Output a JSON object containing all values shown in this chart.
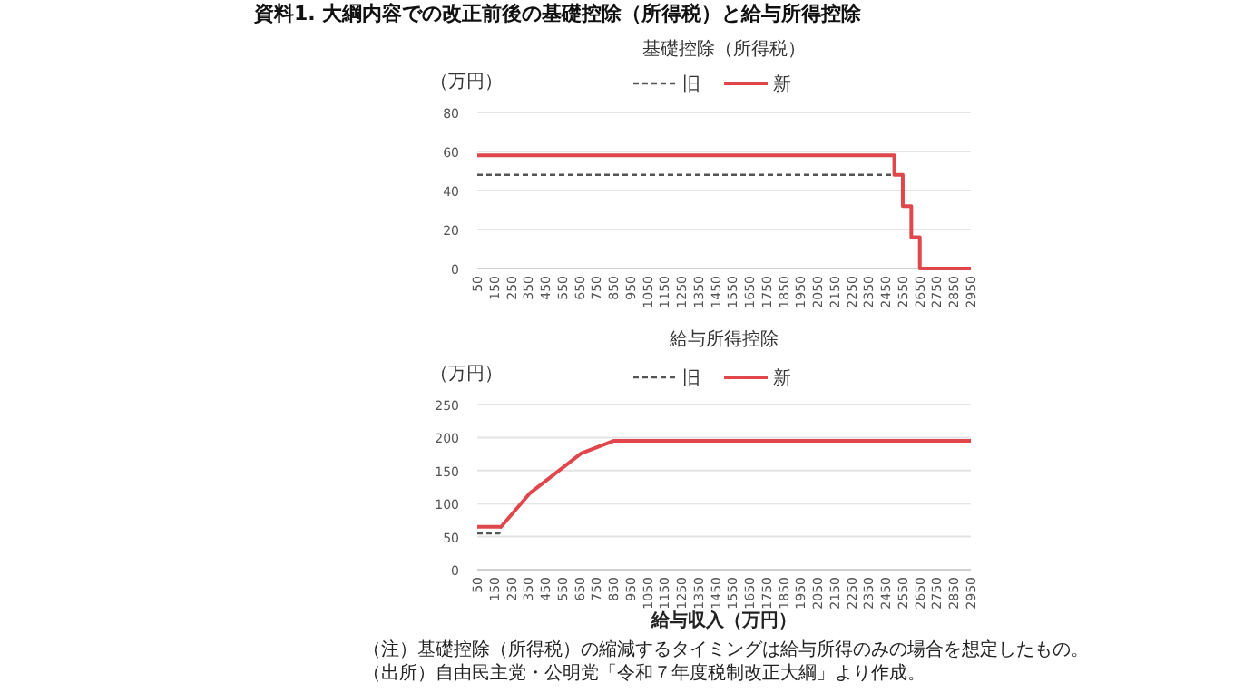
{
  "chart_data": [
    {
      "type": "step",
      "title": "資料1.  大綱内容での改正前後の基礎控除（所得税）と給与所得控除",
      "subtitle": "基礎控除（所得税）",
      "ylabel": "（万円）",
      "series": [
        {
          "name": "旧",
          "color": "#555555",
          "line_style": "dashed",
          "x": [
            50,
            2500
          ],
          "values": [
            48,
            48
          ]
        },
        {
          "name": "新",
          "color": "#e0474c",
          "line_style": "solid",
          "x": [
            50,
            2500,
            2550,
            2600,
            2650,
            2950
          ],
          "values": [
            58,
            48,
            32,
            16,
            0,
            0
          ]
        }
      ],
      "xlim": [
        50,
        2950
      ],
      "xticks": [
        50,
        150,
        250,
        350,
        450,
        550,
        650,
        750,
        850,
        950,
        1050,
        1150,
        1250,
        1350,
        1450,
        1550,
        1650,
        1750,
        1850,
        1950,
        2050,
        2150,
        2250,
        2350,
        2450,
        2550,
        2650,
        2750,
        2850,
        2950
      ],
      "ylim": [
        0,
        80
      ],
      "yticks": [
        0,
        20,
        40,
        60,
        80
      ],
      "grid": "y",
      "legend": "top"
    },
    {
      "type": "line",
      "title": "給与所得控除",
      "ylabel": "（万円）",
      "xlabel": "給与収入（万円）",
      "series": [
        {
          "name": "旧",
          "color": "#555555",
          "line_style": "dashed",
          "x": [
            50,
            180,
            190
          ],
          "values": [
            55,
            55,
            65
          ]
        },
        {
          "name": "新",
          "color": "#e0474c",
          "line_style": "solid",
          "x": [
            50,
            190,
            360,
            660,
            850,
            2950
          ],
          "values": [
            65,
            65,
            116,
            176,
            195,
            195
          ]
        }
      ],
      "xlim": [
        50,
        2950
      ],
      "xticks": [
        50,
        150,
        250,
        350,
        450,
        550,
        650,
        750,
        850,
        950,
        1050,
        1150,
        1250,
        1350,
        1450,
        1550,
        1650,
        1750,
        1850,
        1950,
        2050,
        2150,
        2250,
        2350,
        2450,
        2550,
        2650,
        2750,
        2850,
        2950
      ],
      "ylim": [
        0,
        250
      ],
      "yticks": [
        0,
        50,
        100,
        150,
        200,
        250
      ],
      "grid": "y",
      "legend": "top",
      "annotations": [
        "（注）基礎控除（所得税）の縮減するタイミングは給与所得のみの場合を想定したもの。",
        "（出所）自由民主党・公明党「令和７年度税制改正大綱」より作成。"
      ]
    }
  ]
}
